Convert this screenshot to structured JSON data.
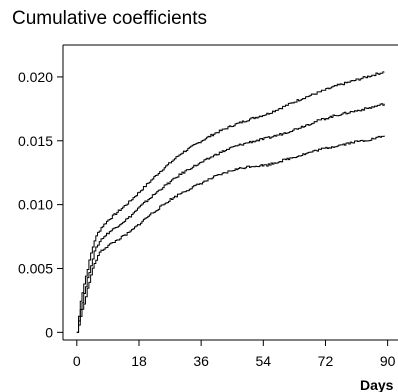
{
  "chart_data": {
    "type": "line",
    "title": "Cumulative coefficients",
    "xlabel": "Days",
    "ylabel": "",
    "xlim": [
      -4,
      93
    ],
    "ylim": [
      -0.0006,
      0.0225
    ],
    "xticks": [
      0,
      18,
      36,
      54,
      72,
      90
    ],
    "xtick_labels": [
      "0",
      "18",
      "36",
      "54",
      "72",
      "90"
    ],
    "yticks": [
      0,
      0.005,
      0.01,
      0.015,
      0.02
    ],
    "ytick_labels": [
      "0",
      "0.005",
      "0.010",
      "0.015",
      "0.020"
    ],
    "grid": false,
    "legend": "none",
    "line_style": "step",
    "color": "#000000",
    "series": [
      {
        "x": [
          0,
          1,
          2,
          3,
          4,
          5,
          6,
          7,
          9,
          12,
          15,
          18,
          21,
          24,
          27,
          30,
          33,
          36,
          40,
          45,
          50,
          55,
          60,
          65,
          70,
          75,
          80,
          85,
          89
        ],
        "values": [
          0,
          0.0025,
          0.0038,
          0.005,
          0.0062,
          0.0072,
          0.0078,
          0.0082,
          0.0088,
          0.0095,
          0.0102,
          0.011,
          0.0118,
          0.0126,
          0.0133,
          0.014,
          0.0145,
          0.015,
          0.0156,
          0.0162,
          0.0167,
          0.0171,
          0.0177,
          0.0183,
          0.0188,
          0.0193,
          0.0197,
          0.0201,
          0.0204
        ]
      },
      {
        "x": [
          0,
          1,
          2,
          3,
          4,
          5,
          6,
          7,
          9,
          12,
          15,
          18,
          21,
          24,
          27,
          30,
          33,
          36,
          40,
          45,
          50,
          55,
          60,
          65,
          70,
          75,
          80,
          85,
          89
        ],
        "values": [
          0,
          0.0018,
          0.003,
          0.0042,
          0.0053,
          0.0063,
          0.0069,
          0.0073,
          0.0078,
          0.0084,
          0.009,
          0.0098,
          0.0105,
          0.0112,
          0.0118,
          0.0124,
          0.0129,
          0.0133,
          0.0139,
          0.0145,
          0.0149,
          0.0152,
          0.0156,
          0.0161,
          0.0166,
          0.017,
          0.0173,
          0.0176,
          0.0179
        ]
      },
      {
        "x": [
          0,
          1,
          2,
          3,
          4,
          5,
          6,
          7,
          9,
          12,
          15,
          18,
          21,
          24,
          27,
          30,
          33,
          36,
          40,
          45,
          50,
          55,
          60,
          65,
          70,
          75,
          80,
          85,
          89
        ],
        "values": [
          0,
          0.0012,
          0.0023,
          0.0034,
          0.0045,
          0.0054,
          0.006,
          0.0064,
          0.0068,
          0.0073,
          0.0078,
          0.0085,
          0.0092,
          0.0098,
          0.0104,
          0.0109,
          0.0113,
          0.0117,
          0.0122,
          0.0127,
          0.013,
          0.0131,
          0.0135,
          0.0139,
          0.0143,
          0.0146,
          0.0149,
          0.0151,
          0.0154
        ]
      }
    ]
  }
}
